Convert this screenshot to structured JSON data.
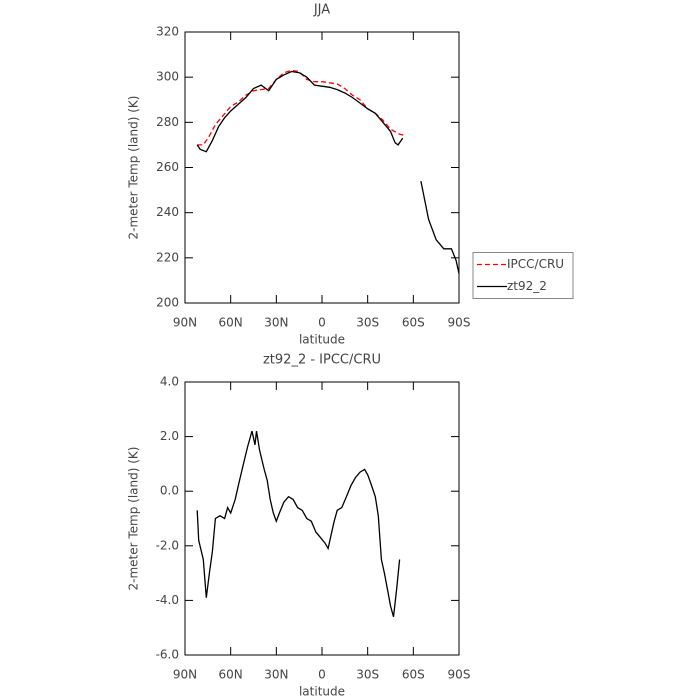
{
  "chart_data": [
    {
      "type": "line",
      "title": "JJA",
      "xlabel": "latitude",
      "ylabel": "2-meter Temp (land) (K)",
      "xlim": [
        90,
        -90
      ],
      "xticks": [
        {
          "value": 90,
          "label": "90N"
        },
        {
          "value": 60,
          "label": "60N"
        },
        {
          "value": 30,
          "label": "30N"
        },
        0,
        {
          "value": -30,
          "label": "30S"
        },
        {
          "value": -60,
          "label": "60S"
        },
        {
          "value": -90,
          "label": "90S"
        }
      ],
      "ylim": [
        200,
        320
      ],
      "yticks": [
        200,
        220,
        240,
        260,
        280,
        300,
        320
      ],
      "legend": "right",
      "series": [
        {
          "name": "IPCC/CRU",
          "color": "#ff0000",
          "style": "dashed",
          "x": [
            82,
            78,
            74,
            70,
            65,
            60,
            55,
            50,
            45,
            40,
            35,
            30,
            25,
            20,
            15,
            10,
            5,
            0,
            -5,
            -10,
            -15,
            -20,
            -25,
            -30,
            -35,
            -40,
            -45,
            -50,
            -55
          ],
          "values": [
            270,
            270,
            274,
            279,
            283,
            287,
            289,
            292,
            294,
            294.5,
            295,
            299,
            302,
            303,
            302.5,
            299,
            298,
            298,
            297.5,
            297,
            295,
            292,
            290,
            286,
            284,
            281,
            277,
            275,
            274
          ]
        },
        {
          "name": "zt92_2",
          "color": "#000000",
          "style": "solid",
          "x": [
            82,
            80,
            76,
            72,
            68,
            64,
            60,
            55,
            50,
            45,
            40,
            35,
            30,
            25,
            20,
            15,
            10,
            5,
            0,
            -5,
            -10,
            -15,
            -20,
            -25,
            -30,
            -35,
            -40,
            -45,
            -48,
            -50,
            -53,
            -59,
            -65,
            -70,
            -75,
            -80,
            -85,
            -88,
            -90
          ],
          "values": [
            270,
            268,
            267,
            272,
            278,
            282,
            285,
            288,
            291,
            295,
            296.5,
            294,
            299,
            301,
            302.5,
            302,
            300,
            296.5,
            296,
            295.5,
            294.5,
            293,
            291,
            288.5,
            286,
            284,
            280,
            276,
            271,
            270,
            273,
            null,
            254,
            237,
            228,
            224,
            224,
            219,
            213
          ]
        }
      ]
    },
    {
      "type": "line",
      "title": "zt92_2 - IPCC/CRU",
      "xlabel": "latitude",
      "ylabel": "2-meter Temp (land) (K)",
      "xlim": [
        90,
        -90
      ],
      "xticks": [
        {
          "value": 90,
          "label": "90N"
        },
        {
          "value": 60,
          "label": "60N"
        },
        {
          "value": 30,
          "label": "30N"
        },
        0,
        {
          "value": -30,
          "label": "30S"
        },
        {
          "value": -60,
          "label": "60S"
        },
        {
          "value": -90,
          "label": "90S"
        }
      ],
      "ylim": [
        -6,
        4
      ],
      "yticks": [
        {
          "value": -6,
          "label": "-6.0"
        },
        {
          "value": -4,
          "label": "-4.0"
        },
        {
          "value": -2,
          "label": "-2.0"
        },
        {
          "value": 0,
          "label": "0.0"
        },
        {
          "value": 2,
          "label": "2.0"
        },
        {
          "value": 4,
          "label": "4.0"
        }
      ],
      "series": [
        {
          "color": "#000000",
          "style": "solid",
          "x": [
            82,
            81,
            78,
            76,
            74,
            72,
            70,
            67,
            64,
            62,
            60,
            57,
            55,
            52,
            49,
            46,
            44,
            43,
            41,
            38,
            36,
            34,
            32,
            30,
            28,
            25,
            22,
            19,
            16,
            13,
            10,
            7,
            4,
            1,
            -2,
            -4,
            -6,
            -8,
            -10,
            -13,
            -16,
            -19,
            -22,
            -25,
            -28,
            -30,
            -32,
            -35,
            -37,
            -39,
            -41,
            -43,
            -45,
            -47,
            -49,
            -51
          ],
          "values": [
            -0.7,
            -1.8,
            -2.5,
            -3.9,
            -3.0,
            -2.2,
            -1.0,
            -0.9,
            -1.0,
            -0.6,
            -0.8,
            -0.3,
            0.2,
            0.9,
            1.6,
            2.2,
            1.7,
            2.2,
            1.5,
            0.8,
            0.4,
            -0.3,
            -0.8,
            -1.1,
            -0.8,
            -0.4,
            -0.2,
            -0.3,
            -0.6,
            -0.7,
            -1.0,
            -1.1,
            -1.5,
            -1.7,
            -1.9,
            -2.1,
            -1.6,
            -1.1,
            -0.7,
            -0.6,
            -0.2,
            0.2,
            0.5,
            0.7,
            0.8,
            0.6,
            0.3,
            -0.2,
            -0.9,
            -2.5,
            -3.0,
            -3.6,
            -4.2,
            -4.6,
            -3.6,
            -2.5
          ]
        }
      ]
    }
  ]
}
